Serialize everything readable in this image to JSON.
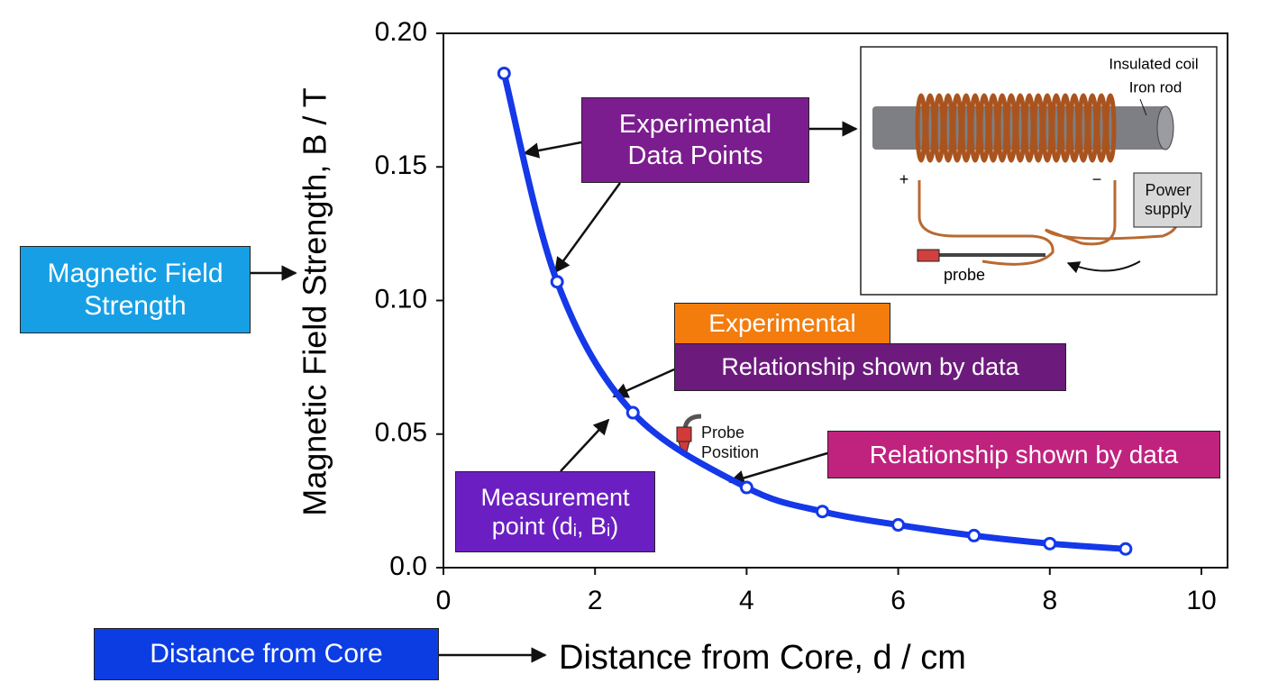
{
  "chart_data": {
    "type": "line",
    "y_axis_label": "Magnetic Field Strength, B / T",
    "x_axis_label": "Distance from Core, d / cm",
    "x": [
      0.8,
      1.5,
      2.5,
      4,
      5,
      6,
      7,
      8,
      9
    ],
    "series": [
      {
        "name": "Experimental Data Points",
        "color": "#1538e8",
        "values": [
          0.185,
          0.107,
          0.058,
          0.03,
          0.021,
          0.016,
          0.012,
          0.009,
          0.007
        ]
      }
    ],
    "xlim": [
      0,
      10
    ],
    "xticks": [
      0,
      2,
      4,
      6,
      8,
      10
    ],
    "ylim": [
      0,
      0.2
    ],
    "yticks": [
      {
        "value": 0,
        "label": "0.0"
      },
      0.05,
      {
        "value": 0.1,
        "label": "0.10"
      },
      0.15,
      {
        "value": 0.2,
        "label": "0.20"
      }
    ],
    "grid": false,
    "annotations": [
      "Experimental Data Points",
      "Magnetic Field Strength",
      "Experimental",
      "Relationship shown by data",
      "Relationship shown by data",
      "Measurement point (dᵢ, Bᵢ)",
      "Distance from Core",
      "Probe Position"
    ],
    "inset": {
      "coil": "Insulated coil",
      "rod": "Iron rod",
      "plus": "+",
      "minus": "−",
      "supply": "Power supply",
      "probe": "probe"
    }
  }
}
